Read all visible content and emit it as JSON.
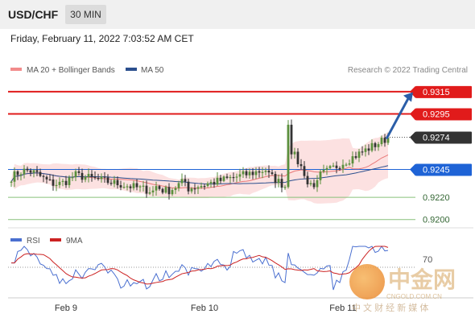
{
  "header": {
    "symbol": "USD/CHF",
    "timeframe": "30 MIN"
  },
  "datetime": "Friday, February 11, 2022 7:03:52 AM CET",
  "legend": {
    "ma20": "MA 20 + Bollinger Bands",
    "ma50": "MA 50",
    "credit": "Research © 2022 Trading Central"
  },
  "rsi_legend": {
    "rsi": "RSI",
    "ma": "9MA"
  },
  "colors": {
    "up": "#5a8f3c",
    "down": "#333333",
    "ma20": "#e87878",
    "ma50": "#2b4f8e",
    "bb_fill": "#fbdada",
    "resistance": "#e11b1b",
    "support": "#88c07a",
    "current": "#333333",
    "pivot": "#1e63d6",
    "rsi": "#4a6fd0",
    "rsi_ma": "#cc2222"
  },
  "watermark": {
    "brand": "中金网",
    "url": "CNGOLD.COM.CN",
    "tagline": "中 文 财 经 新 媒 体"
  },
  "chart_data": {
    "type": "candlestick",
    "xlabels": [
      "Feb 9",
      "Feb 10",
      "Feb 11"
    ],
    "ylim": [
      0.9194,
      0.9325
    ],
    "levels": [
      {
        "label": "0.9315",
        "value": 0.9315,
        "kind": "resistance"
      },
      {
        "label": "0.9295",
        "value": 0.9295,
        "kind": "resistance"
      },
      {
        "label": "0.9274",
        "value": 0.9274,
        "kind": "current"
      },
      {
        "label": "0.9245",
        "value": 0.9245,
        "kind": "pivot"
      },
      {
        "label": "0.9220",
        "value": 0.922,
        "kind": "support"
      },
      {
        "label": "0.9200",
        "value": 0.92,
        "kind": "support"
      }
    ],
    "rsi": {
      "label_70": "70",
      "ylim": [
        20,
        80
      ]
    }
  }
}
